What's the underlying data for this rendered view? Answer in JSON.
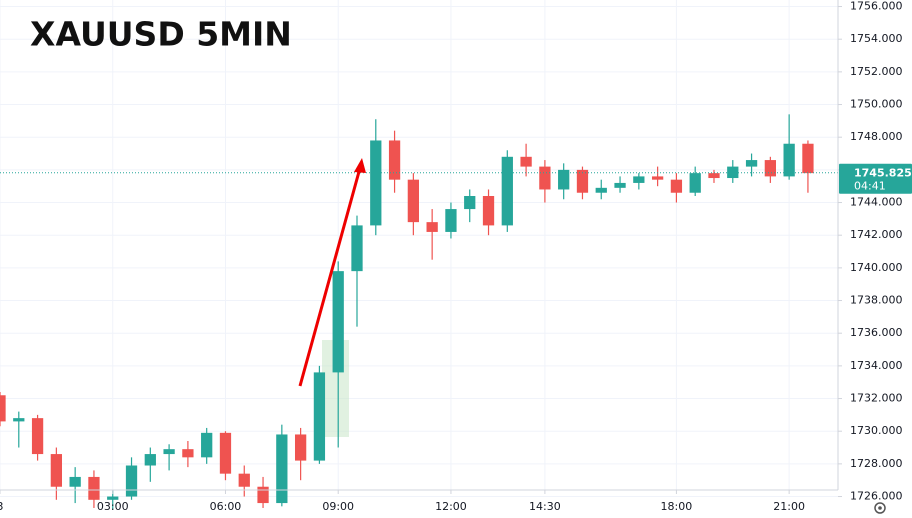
{
  "chart_data": {
    "type": "candlestick",
    "title": "XAUUSD 5MIN",
    "x": [
      0.0,
      0.5,
      1.0,
      1.5,
      2.0,
      2.5,
      3.0,
      3.5,
      4.0,
      4.5,
      5.0,
      5.5,
      6.0,
      6.5,
      7.0,
      7.5,
      8.0,
      8.5,
      9.0,
      9.5,
      10.0,
      10.5,
      11.0,
      11.5,
      12.0,
      12.5,
      13.0,
      13.5,
      14.0,
      14.5,
      15.0,
      15.5,
      16.0,
      16.5,
      17.0,
      17.5,
      18.0,
      18.5,
      19.0,
      19.5,
      20.0,
      20.5,
      21.0,
      21.5
    ],
    "open": [
      1732.2,
      1730.6,
      1730.8,
      1728.6,
      1726.6,
      1727.2,
      1725.8,
      1726.0,
      1727.9,
      1728.6,
      1728.9,
      1728.4,
      1729.9,
      1727.4,
      1726.6,
      1725.6,
      1729.8,
      1728.2,
      1733.6,
      1739.8,
      1742.6,
      1747.8,
      1745.4,
      1742.8,
      1742.2,
      1743.6,
      1744.4,
      1742.6,
      1746.8,
      1746.2,
      1744.8,
      1746.0,
      1744.6,
      1744.9,
      1745.2,
      1745.6,
      1745.4,
      1744.6,
      1745.8,
      1745.5,
      1746.2,
      1746.6,
      1745.6,
      1747.6
    ],
    "high": [
      1732.4,
      1731.2,
      1731.0,
      1729.0,
      1727.8,
      1727.6,
      1726.4,
      1728.4,
      1729.0,
      1729.2,
      1729.4,
      1730.2,
      1730.0,
      1727.9,
      1727.2,
      1730.4,
      1730.2,
      1734.0,
      1740.4,
      1743.2,
      1749.1,
      1748.4,
      1745.8,
      1743.6,
      1744.0,
      1744.8,
      1744.8,
      1747.2,
      1747.6,
      1746.6,
      1746.4,
      1746.2,
      1745.4,
      1745.6,
      1745.8,
      1746.2,
      1745.8,
      1746.2,
      1746.0,
      1746.6,
      1747.0,
      1746.8,
      1749.4,
      1747.8
    ],
    "low": [
      1730.3,
      1729.0,
      1728.2,
      1725.8,
      1725.6,
      1725.3,
      1725.2,
      1725.8,
      1726.9,
      1727.6,
      1727.8,
      1728.0,
      1727.0,
      1726.0,
      1725.3,
      1725.4,
      1727.0,
      1728.0,
      1729.0,
      1736.4,
      1742.0,
      1744.6,
      1742.0,
      1740.5,
      1741.8,
      1742.8,
      1742.0,
      1742.2,
      1745.6,
      1744.0,
      1744.2,
      1744.2,
      1744.2,
      1744.6,
      1744.8,
      1745.0,
      1744.0,
      1744.4,
      1745.2,
      1745.2,
      1745.6,
      1745.2,
      1745.4,
      1744.6
    ],
    "close": [
      1730.6,
      1730.8,
      1728.6,
      1726.6,
      1727.2,
      1725.8,
      1726.0,
      1727.9,
      1728.6,
      1728.9,
      1728.4,
      1729.9,
      1727.4,
      1726.6,
      1725.6,
      1729.8,
      1728.2,
      1733.6,
      1739.8,
      1742.6,
      1747.8,
      1745.4,
      1742.8,
      1742.2,
      1743.6,
      1744.4,
      1742.6,
      1746.8,
      1746.2,
      1744.8,
      1746.0,
      1744.6,
      1744.9,
      1745.2,
      1745.6,
      1745.4,
      1744.6,
      1745.8,
      1745.5,
      1746.2,
      1746.6,
      1745.6,
      1747.6,
      1745.8
    ],
    "up_color": "#26a69a",
    "down_color": "#ef5350",
    "last_price": {
      "value": 1745.825,
      "label": "1745.825"
    },
    "countdown": "04:41",
    "xlim": [
      0,
      22.3
    ],
    "xticks": [
      {
        "value": 0,
        "label": "3"
      },
      {
        "value": 3,
        "label": "03:00"
      },
      {
        "value": 6,
        "label": "06:00"
      },
      {
        "value": 9,
        "label": "09:00"
      },
      {
        "value": 12,
        "label": "12:00"
      },
      {
        "value": 14.5,
        "label": "14:30"
      },
      {
        "value": 18,
        "label": "18:00"
      },
      {
        "value": 21,
        "label": "21:00"
      }
    ],
    "ylim": [
      1726.4,
      1756.4
    ],
    "yticks": [
      {
        "value": 1726,
        "label": "1726.000"
      },
      {
        "value": 1728,
        "label": "1728.000"
      },
      {
        "value": 1730,
        "label": "1730.000"
      },
      {
        "value": 1732,
        "label": "1732.000"
      },
      {
        "value": 1734,
        "label": "1734.000"
      },
      {
        "value": 1736,
        "label": "1736.000"
      },
      {
        "value": 1738,
        "label": "1738.000"
      },
      {
        "value": 1740,
        "label": "1740.000"
      },
      {
        "value": 1742,
        "label": "1742.000"
      },
      {
        "value": 1744,
        "label": "1744.000"
      },
      {
        "value": 1746,
        "label": "1746.000"
      },
      {
        "value": 1748,
        "label": "1748.000"
      },
      {
        "value": 1750,
        "label": "1750.000"
      },
      {
        "value": 1752,
        "label": "1752.000"
      },
      {
        "value": 1754,
        "label": "1754.000"
      },
      {
        "value": 1756,
        "label": "1756.000"
      }
    ],
    "grid": true
  }
}
